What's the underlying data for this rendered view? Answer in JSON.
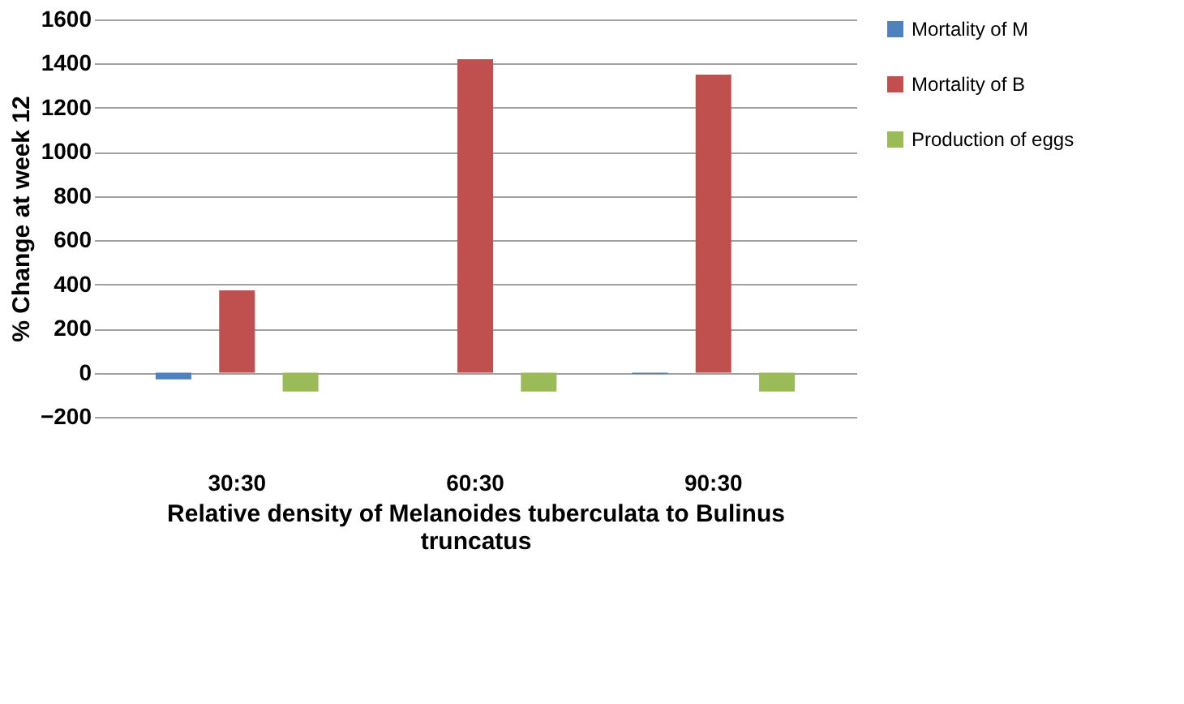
{
  "chart_data": {
    "type": "bar",
    "categories": [
      "30:30",
      "60:30",
      "90:30"
    ],
    "series": [
      {
        "name": "Mortality of M",
        "color": "#4f81bd",
        "values": [
          -30,
          0,
          -5
        ]
      },
      {
        "name": "Mortality of B",
        "color": "#c0504d",
        "values": [
          373,
          1420,
          1350
        ]
      },
      {
        "name": "Production of eggs",
        "color": "#9bbb59",
        "values": [
          -85,
          -85,
          -85
        ]
      }
    ],
    "xlabel": "Relative density of Melanoides tuberculata to  Bulinus truncatus",
    "ylabel": "% Change at week 12",
    "ylim": [
      -200,
      1600
    ],
    "yticks": [
      -200,
      0,
      200,
      400,
      600,
      800,
      1000,
      1200,
      1400,
      1600
    ],
    "grid": "y",
    "legend": "right"
  }
}
